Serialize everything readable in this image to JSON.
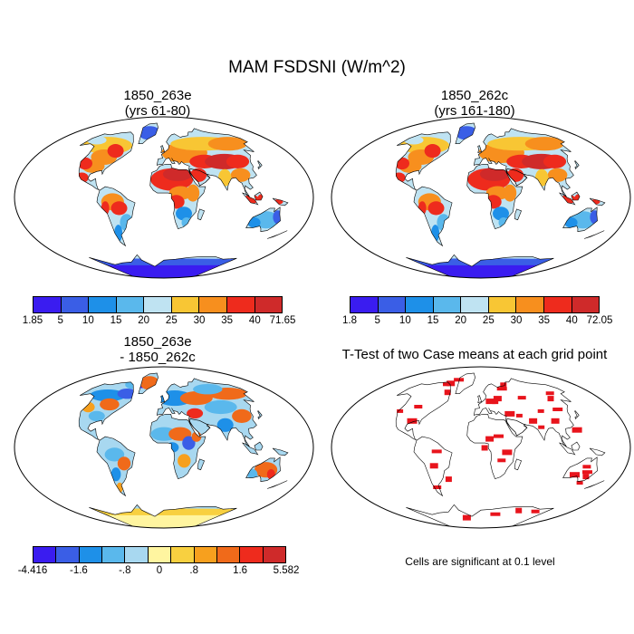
{
  "title": "MAM FSDSNI (W/m^2)",
  "panels": [
    {
      "title_line1": "1850_263e",
      "title_line2": "(yrs 61-80)",
      "type": "field"
    },
    {
      "title_line1": "1850_262c",
      "title_line2": "(yrs 161-180)",
      "type": "field"
    },
    {
      "title_line1": "1850_263e",
      "title_line2": "- 1850_262c",
      "type": "difference"
    },
    {
      "title_line1": "T-Test of two Case means at each grid point",
      "title_line2": "",
      "type": "ttest"
    }
  ],
  "colorbars": {
    "panel1": {
      "labels": [
        "1.85",
        "5",
        "10",
        "15",
        "20",
        "25",
        "30",
        "35",
        "40",
        "71.65"
      ]
    },
    "panel2": {
      "labels": [
        "1.8",
        "5",
        "10",
        "15",
        "20",
        "25",
        "30",
        "35",
        "40",
        "72.05"
      ]
    },
    "diff": {
      "labels": [
        "-4.416",
        "-1.6",
        "-.8",
        "0",
        ".8",
        "1.6",
        "5.582"
      ]
    }
  },
  "colors": {
    "field_scale": [
      "#3a1cf0",
      "#3a5ee6",
      "#1e90e8",
      "#5ab8ec",
      "#bfe3f2",
      "#f8c634",
      "#f78f1e",
      "#ee2b1d",
      "#cf2a2a"
    ],
    "diff_scale": [
      "#3a1cf0",
      "#3a5ee6",
      "#1e90e8",
      "#5ab8ec",
      "#a8d8f0",
      "#fff5a0",
      "#f8d040",
      "#f7a01e",
      "#f06a1a",
      "#ee2b1d",
      "#cf2a2a"
    ],
    "significant": "#e8141c"
  },
  "note": "Cells are significant at 0.1 level"
}
